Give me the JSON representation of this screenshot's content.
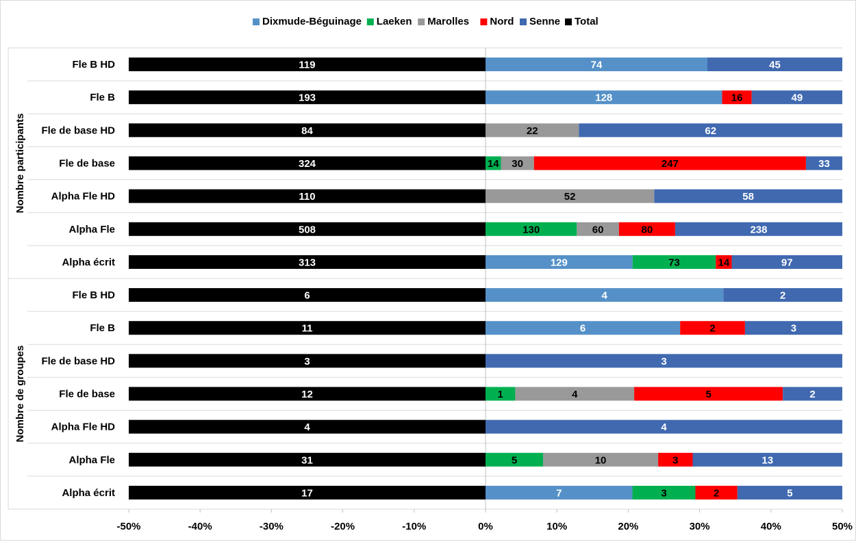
{
  "chart_data": {
    "type": "bar",
    "orientation": "horizontal",
    "stacked": true,
    "xlim": [
      -0.5,
      0.5
    ],
    "x_ticks": [
      -0.5,
      -0.4,
      -0.3,
      -0.2,
      -0.1,
      0,
      0.1,
      0.2,
      0.3,
      0.4,
      0.5
    ],
    "x_tick_labels": [
      "-50%",
      "-40%",
      "-30%",
      "-20%",
      "-10%",
      "0%",
      "10%",
      "20%",
      "30%",
      "40%",
      "50%"
    ],
    "legend": {
      "position": "top",
      "entries": [
        {
          "name": "Dixmude-Béguinage",
          "color": "#5591c8"
        },
        {
          "name": "Laeken",
          "color": "#00b050"
        },
        {
          "name": "Marolles",
          "color": "#999999"
        },
        {
          "name": "Nord",
          "color": "#ff0000"
        },
        {
          "name": "Senne",
          "color": "#4069b0"
        },
        {
          "name": "Total",
          "color": "#000000"
        }
      ]
    },
    "groups": [
      {
        "name": "Nombre participants",
        "categories": [
          {
            "label": "Fle B HD",
            "total": 119,
            "segments": [
              {
                "series": "Dixmude-Béguinage",
                "value": 74
              },
              {
                "series": "Senne",
                "value": 45
              }
            ]
          },
          {
            "label": "Fle B",
            "total": 193,
            "segments": [
              {
                "series": "Dixmude-Béguinage",
                "value": 128
              },
              {
                "series": "Nord",
                "value": 16
              },
              {
                "series": "Senne",
                "value": 49
              }
            ]
          },
          {
            "label": "Fle de base HD",
            "total": 84,
            "segments": [
              {
                "series": "Marolles",
                "value": 22
              },
              {
                "series": "Senne",
                "value": 62
              }
            ]
          },
          {
            "label": "Fle de base",
            "total": 324,
            "segments": [
              {
                "series": "Laeken",
                "value": 14
              },
              {
                "series": "Marolles",
                "value": 30
              },
              {
                "series": "Nord",
                "value": 247
              },
              {
                "series": "Senne",
                "value": 33
              }
            ]
          },
          {
            "label": "Alpha Fle HD",
            "total": 110,
            "segments": [
              {
                "series": "Marolles",
                "value": 52
              },
              {
                "series": "Senne",
                "value": 58
              }
            ]
          },
          {
            "label": "Alpha Fle",
            "total": 508,
            "segments": [
              {
                "series": "Laeken",
                "value": 130
              },
              {
                "series": "Marolles",
                "value": 60
              },
              {
                "series": "Nord",
                "value": 80
              },
              {
                "series": "Senne",
                "value": 238
              }
            ]
          },
          {
            "label": "Alpha écrit",
            "total": 313,
            "segments": [
              {
                "series": "Dixmude-Béguinage",
                "value": 129
              },
              {
                "series": "Laeken",
                "value": 73
              },
              {
                "series": "Nord",
                "value": 14
              },
              {
                "series": "Senne",
                "value": 97
              }
            ]
          }
        ]
      },
      {
        "name": "Nombre de groupes",
        "categories": [
          {
            "label": "Fle B HD",
            "total": 6,
            "segments": [
              {
                "series": "Dixmude-Béguinage",
                "value": 4
              },
              {
                "series": "Senne",
                "value": 2
              }
            ]
          },
          {
            "label": "Fle B",
            "total": 11,
            "segments": [
              {
                "series": "Dixmude-Béguinage",
                "value": 6
              },
              {
                "series": "Nord",
                "value": 2
              },
              {
                "series": "Senne",
                "value": 3
              }
            ]
          },
          {
            "label": "Fle de base HD",
            "total": 3,
            "segments": [
              {
                "series": "Senne",
                "value": 3
              }
            ]
          },
          {
            "label": "Fle de base",
            "total": 12,
            "segments": [
              {
                "series": "Laeken",
                "value": 1
              },
              {
                "series": "Marolles",
                "value": 4
              },
              {
                "series": "Nord",
                "value": 5
              },
              {
                "series": "Senne",
                "value": 2
              }
            ]
          },
          {
            "label": "Alpha Fle HD",
            "total": 4,
            "segments": [
              {
                "series": "Senne",
                "value": 4
              }
            ]
          },
          {
            "label": "Alpha Fle",
            "total": 31,
            "segments": [
              {
                "series": "Laeken",
                "value": 5
              },
              {
                "series": "Marolles",
                "value": 10
              },
              {
                "series": "Nord",
                "value": 3
              },
              {
                "series": "Senne",
                "value": 13
              }
            ]
          },
          {
            "label": "Alpha écrit",
            "total": 17,
            "segments": [
              {
                "series": "Dixmude-Béguinage",
                "value": 7
              },
              {
                "series": "Laeken",
                "value": 3
              },
              {
                "series": "Nord",
                "value": 2
              },
              {
                "series": "Senne",
                "value": 5
              }
            ]
          }
        ]
      }
    ]
  }
}
